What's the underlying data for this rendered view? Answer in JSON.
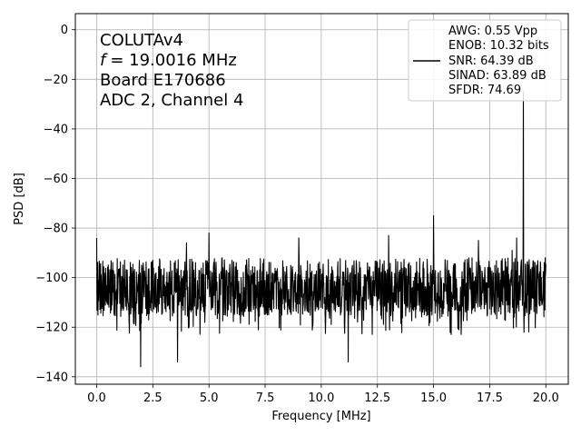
{
  "chart_data": {
    "type": "line",
    "title": "",
    "xlabel": "Frequency [MHz]",
    "ylabel": "PSD [dB]",
    "xlim": [
      -0.95,
      21.0
    ],
    "ylim": [
      -143,
      6.5
    ],
    "xticks": [
      0.0,
      2.5,
      5.0,
      7.5,
      10.0,
      12.5,
      15.0,
      17.5,
      20.0
    ],
    "xtick_labels": [
      "0.0",
      "2.5",
      "5.0",
      "7.5",
      "10.0",
      "12.5",
      "15.0",
      "17.5",
      "20.0"
    ],
    "yticks": [
      0,
      -20,
      -40,
      -60,
      -80,
      -100,
      -120,
      -140
    ],
    "ytick_labels": [
      "0",
      "−20",
      "−40",
      "−60",
      "−80",
      "−100",
      "−120",
      "−140"
    ],
    "grid": true,
    "legend_position": "top-right",
    "annotation_lines": [
      "COLUTAv4",
      "= 19.0016 MHz",
      "Board E170686",
      "ADC 2, Channel 4"
    ],
    "annotation_symbol": "f",
    "series": [
      {
        "color": "#000000",
        "noise_floor_db": -106,
        "noise_band_db": [
          -115,
          -95
        ],
        "x_range": [
          0.0,
          20.0
        ],
        "peaks": [
          {
            "x": 0.0,
            "y": -84
          },
          {
            "x": 1.95,
            "y": -136
          },
          {
            "x": 2.5,
            "y": -93
          },
          {
            "x": 4.0,
            "y": -86
          },
          {
            "x": 3.6,
            "y": -134
          },
          {
            "x": 5.0,
            "y": -82
          },
          {
            "x": 9.0,
            "y": -84
          },
          {
            "x": 11.2,
            "y": -134
          },
          {
            "x": 13.0,
            "y": -83
          },
          {
            "x": 15.0,
            "y": -75
          },
          {
            "x": 17.0,
            "y": -85
          },
          {
            "x": 18.5,
            "y": -89
          },
          {
            "x": 18.7,
            "y": -84
          },
          {
            "x": 19.0016,
            "y": -25
          }
        ]
      }
    ],
    "legend": [
      {
        "label_lines": [
          "AWG: 0.55 Vpp",
          "ENOB: 10.32 bits",
          "SNR: 64.39 dB",
          "SINAD: 63.89 dB",
          "SFDR: 74.69"
        ],
        "color": "#000000"
      }
    ]
  }
}
